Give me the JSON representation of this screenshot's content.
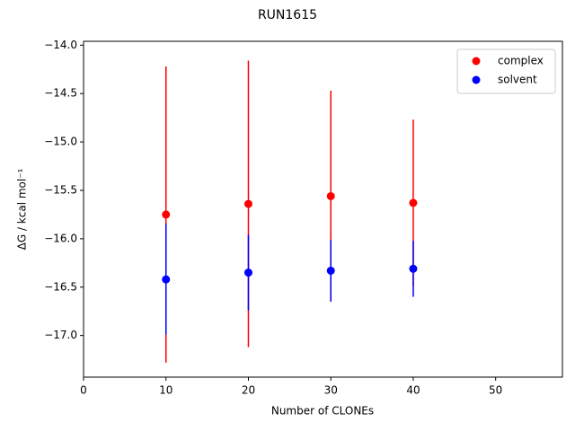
{
  "chart_data": {
    "type": "scatter",
    "title": "RUN1615",
    "xlabel": "Number of CLONEs",
    "ylabel": "ΔG / kcal mol⁻¹",
    "xlim": [
      0,
      58.1
    ],
    "xticks": [
      0,
      10,
      20,
      30,
      40,
      50
    ],
    "ylim": [
      -17.43,
      -13.96
    ],
    "yticks": [
      {
        "value": -17.0,
        "label": "−17.0"
      },
      {
        "value": -16.5,
        "label": "−16.5"
      },
      {
        "value": -16.0,
        "label": "−16.0"
      },
      {
        "value": -15.5,
        "label": "−15.5"
      },
      {
        "value": -15.0,
        "label": "−15.0"
      },
      {
        "value": -14.5,
        "label": "−14.5"
      },
      {
        "value": -14.0,
        "label": "−14.0"
      }
    ],
    "grid": false,
    "legend": "upper right",
    "series": [
      {
        "name": "complex",
        "color": "#ff0000",
        "x": [
          10,
          20,
          30,
          40
        ],
        "values": [
          -15.75,
          -15.64,
          -15.56,
          -15.63
        ],
        "errors": [
          1.53,
          1.48,
          1.09,
          0.86
        ]
      },
      {
        "name": "solvent",
        "color": "#0000ff",
        "x": [
          10,
          20,
          30,
          40
        ],
        "values": [
          -16.42,
          -16.35,
          -16.33,
          -16.31
        ],
        "errors": [
          0.57,
          0.39,
          0.32,
          0.29
        ]
      }
    ]
  }
}
